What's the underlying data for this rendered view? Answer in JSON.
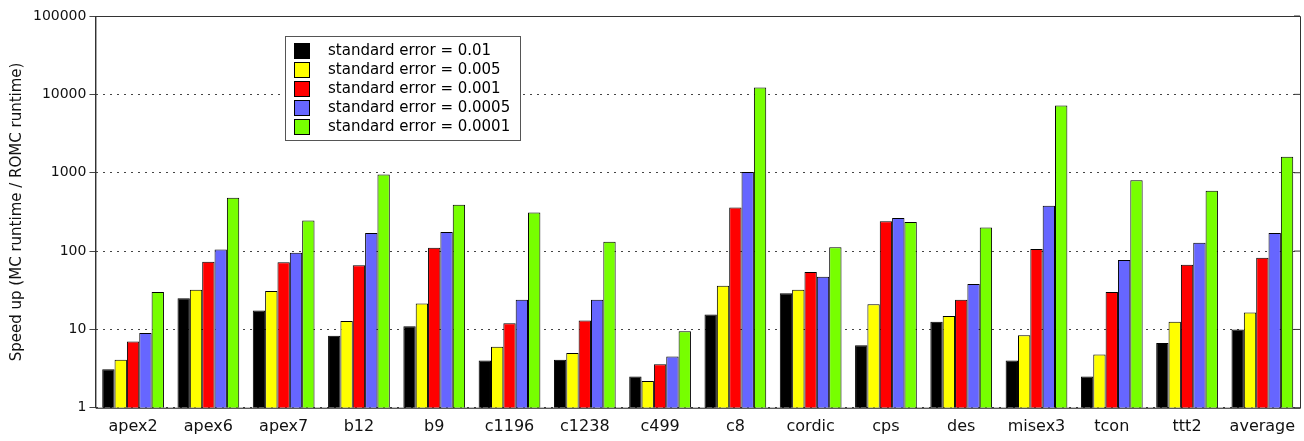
{
  "chart_data": {
    "type": "bar",
    "ylabel": "Speed up (MC runtime / ROMC runtime)",
    "log": "y",
    "ylim": [
      1,
      100000
    ],
    "yticks": [
      1,
      10,
      100,
      1000,
      10000,
      100000
    ],
    "grid": "y",
    "legend": "top left",
    "categories": [
      "apex2",
      "apex6",
      "apex7",
      "b12",
      "b9",
      "c1196",
      "c1238",
      "c499",
      "c8",
      "cordic",
      "cps",
      "des",
      "misex3",
      "tcon",
      "ttt2",
      "average"
    ],
    "series": [
      {
        "name": "standard error = 0.01",
        "color": "#000000",
        "values": [
          3.1,
          25,
          17.5,
          8.3,
          11,
          4,
          4.1,
          2.5,
          15.5,
          29,
          6.3,
          12.5,
          4,
          2.5,
          6.7,
          10
        ]
      },
      {
        "name": "standard error = 0.005",
        "color": "#ffff00",
        "values": [
          4.1,
          32,
          31,
          12.8,
          21.5,
          6,
          5,
          2.2,
          36,
          32,
          21,
          14.8,
          8.4,
          4.8,
          12.5,
          16.5
        ]
      },
      {
        "name": "standard error = 0.001",
        "color": "#ff0000",
        "values": [
          7,
          73,
          72,
          66,
          110,
          12,
          13,
          3.6,
          360,
          54,
          240,
          24,
          106,
          30,
          67,
          82
        ]
      },
      {
        "name": "standard error = 0.0005",
        "color": "#6666ff",
        "values": [
          9,
          105,
          95,
          170,
          175,
          24,
          24,
          4.5,
          1020,
          47,
          265,
          38,
          380,
          77,
          128,
          170
        ]
      },
      {
        "name": "standard error = 0.0001",
        "color": "#77ff00",
        "values": [
          30,
          480,
          245,
          950,
          390,
          310,
          132,
          9.5,
          12200,
          112,
          235,
          200,
          7200,
          800,
          590,
          1600
        ]
      }
    ]
  }
}
